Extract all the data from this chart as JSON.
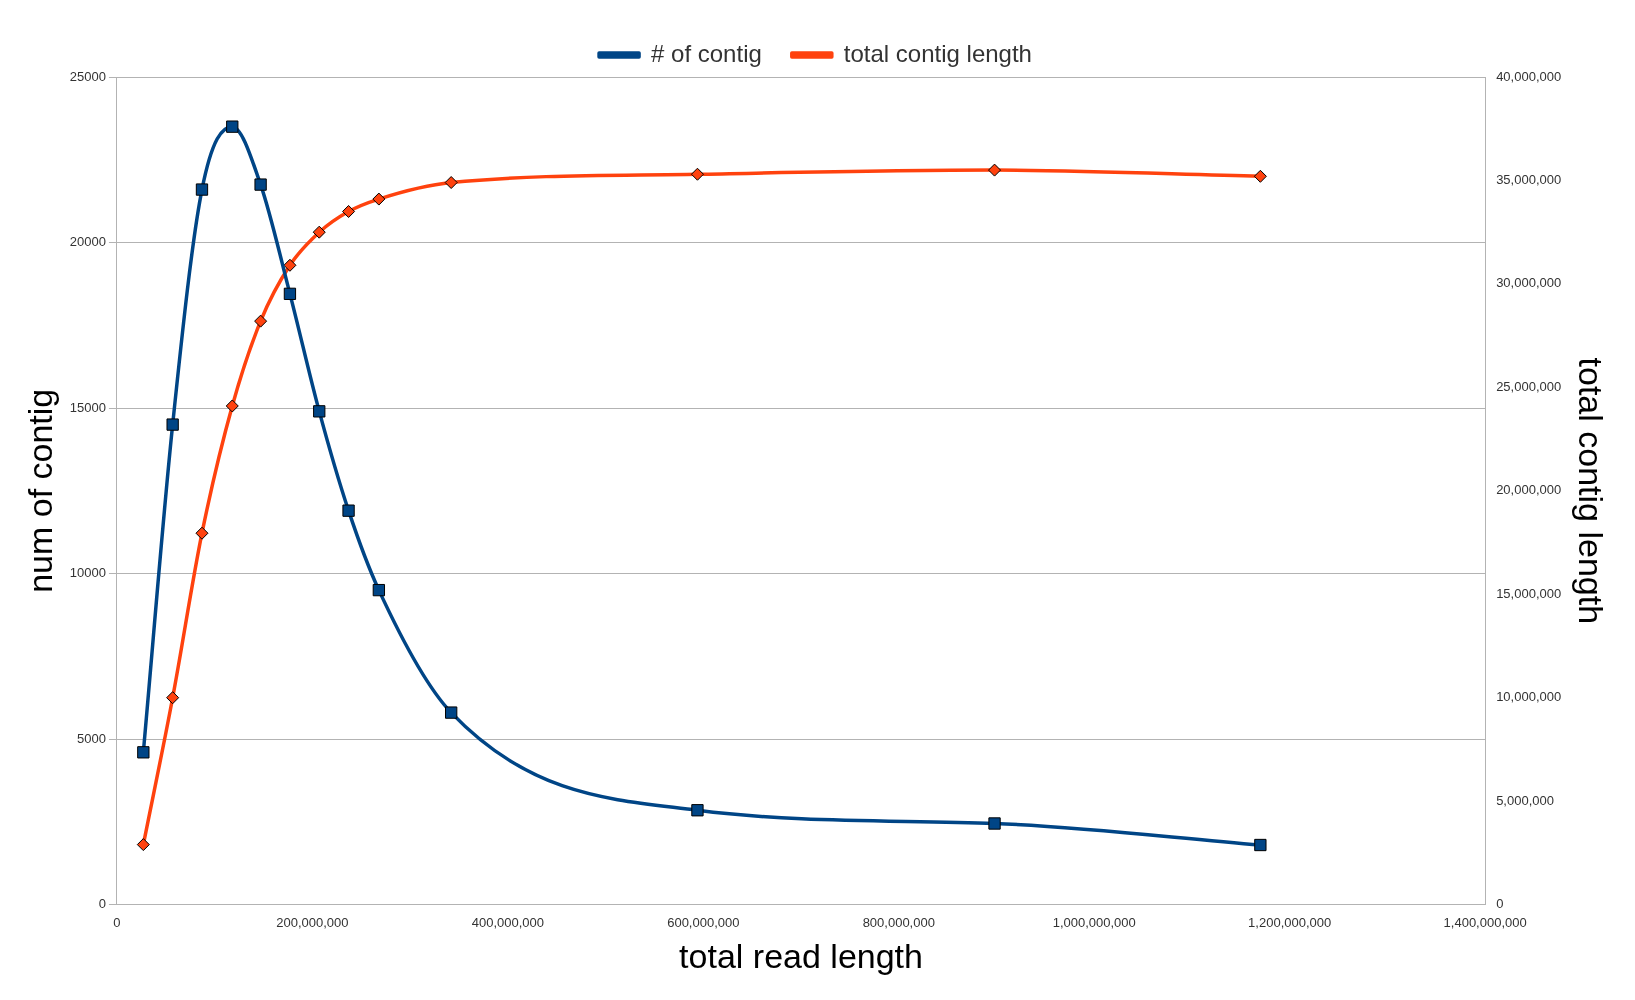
{
  "chart_data": {
    "type": "line",
    "xlabel": "total read length",
    "ylabel": "num of contig",
    "y2label": "total contig length",
    "x": [
      27000000,
      57000000,
      87000000,
      118000000,
      147000000,
      177000000,
      207000000,
      237000000,
      268000000,
      342000000,
      594000000,
      898000000,
      1170000000
    ],
    "series": [
      {
        "name": "# of contig",
        "color": "#004586",
        "marker": "square",
        "values": [
          4600,
          14500,
          21600,
          23500,
          21750,
          18450,
          14900,
          11900,
          9500,
          5800,
          2850,
          2450,
          1800
        ]
      },
      {
        "name": "total contig length",
        "color": "#ff420e",
        "marker": "diamond",
        "axis": "y2",
        "values": [
          2900000,
          10000000,
          17950000,
          24100000,
          28200000,
          30900000,
          32500000,
          33500000,
          34100000,
          34900000,
          35300000,
          35500000,
          35200000
        ]
      }
    ],
    "xlim": [
      0,
      1400000000
    ],
    "xticks": [
      0,
      {
        "value": 200000000,
        "label": "200,000,000"
      },
      {
        "value": 400000000,
        "label": "400,000,000"
      },
      {
        "value": 600000000,
        "label": "600,000,000"
      },
      {
        "value": 800000000,
        "label": "800,000,000"
      },
      {
        "value": 1000000000,
        "label": "1,000,000,000"
      },
      {
        "value": 1200000000,
        "label": "1,200,000,000"
      },
      {
        "value": 1400000000,
        "label": "1,400,000,000"
      }
    ],
    "ylim": [
      0,
      25000
    ],
    "yticks": [
      0,
      5000,
      10000,
      15000,
      20000,
      25000
    ],
    "y2lim": [
      0,
      40000000
    ],
    "y2ticks": [
      0,
      {
        "value": 5000000,
        "label": "5,000,000"
      },
      {
        "value": 10000000,
        "label": "10,000,000"
      },
      {
        "value": 15000000,
        "label": "15,000,000"
      },
      {
        "value": 20000000,
        "label": "20,000,000"
      },
      {
        "value": 25000000,
        "label": "25,000,000"
      },
      {
        "value": 30000000,
        "label": "30,000,000"
      },
      {
        "value": 35000000,
        "label": "35,000,000"
      },
      {
        "value": 40000000,
        "label": "40,000,000"
      }
    ],
    "grid": "y",
    "legend": "top",
    "line_style": "solid"
  }
}
